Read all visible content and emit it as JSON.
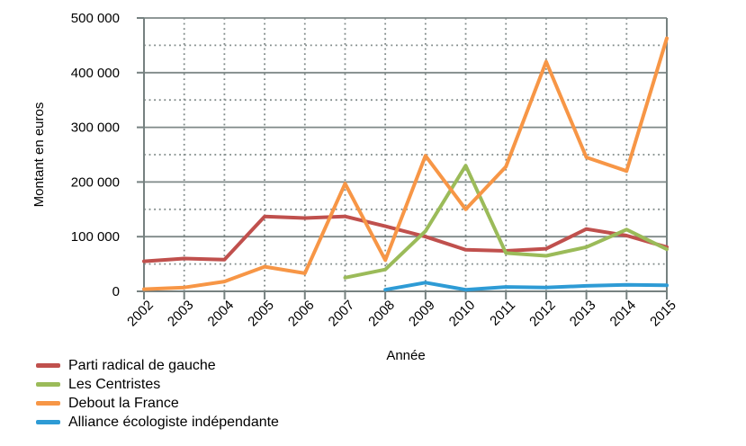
{
  "chart_data": {
    "type": "line",
    "title": "",
    "xlabel": "Année",
    "ylabel": "Montant en euros",
    "x": [
      "2002",
      "2003",
      "2004",
      "2005",
      "2006",
      "2007",
      "2008",
      "2009",
      "2010",
      "2011",
      "2012",
      "2013",
      "2014",
      "2015"
    ],
    "ylim": [
      0,
      500000
    ],
    "ytick_interval": 100000,
    "minor_ytick_step": 50000,
    "ytick_labels": [
      "0",
      "100 000",
      "200 000",
      "300 000",
      "400 000",
      "500 000"
    ],
    "grid": true,
    "minor_grid": true,
    "legend_position": "bottom-left",
    "text_color": "#000000",
    "grid_color": "#7f8988",
    "series": [
      {
        "name": "Parti radical de gauche",
        "color": "#C0504D",
        "values": [
          55000,
          60000,
          58000,
          137000,
          134000,
          137000,
          119000,
          100000,
          76000,
          74000,
          78000,
          114000,
          102000,
          81000
        ]
      },
      {
        "name": "Les Centristes",
        "color": "#9BBB59",
        "values": [
          null,
          null,
          null,
          null,
          null,
          25000,
          40000,
          110000,
          230000,
          70000,
          65000,
          81000,
          113000,
          77000
        ]
      },
      {
        "name": "Debout la France",
        "color": "#F79646",
        "values": [
          4000,
          7000,
          18000,
          45000,
          33000,
          197000,
          57000,
          248000,
          150000,
          228000,
          420000,
          245000,
          220000,
          463000
        ]
      },
      {
        "name": "Alliance écologiste indépendante",
        "color": "#2E9BD5",
        "values": [
          null,
          null,
          null,
          null,
          null,
          null,
          3000,
          16000,
          3000,
          8000,
          7000,
          10000,
          12000,
          11000
        ]
      }
    ]
  }
}
